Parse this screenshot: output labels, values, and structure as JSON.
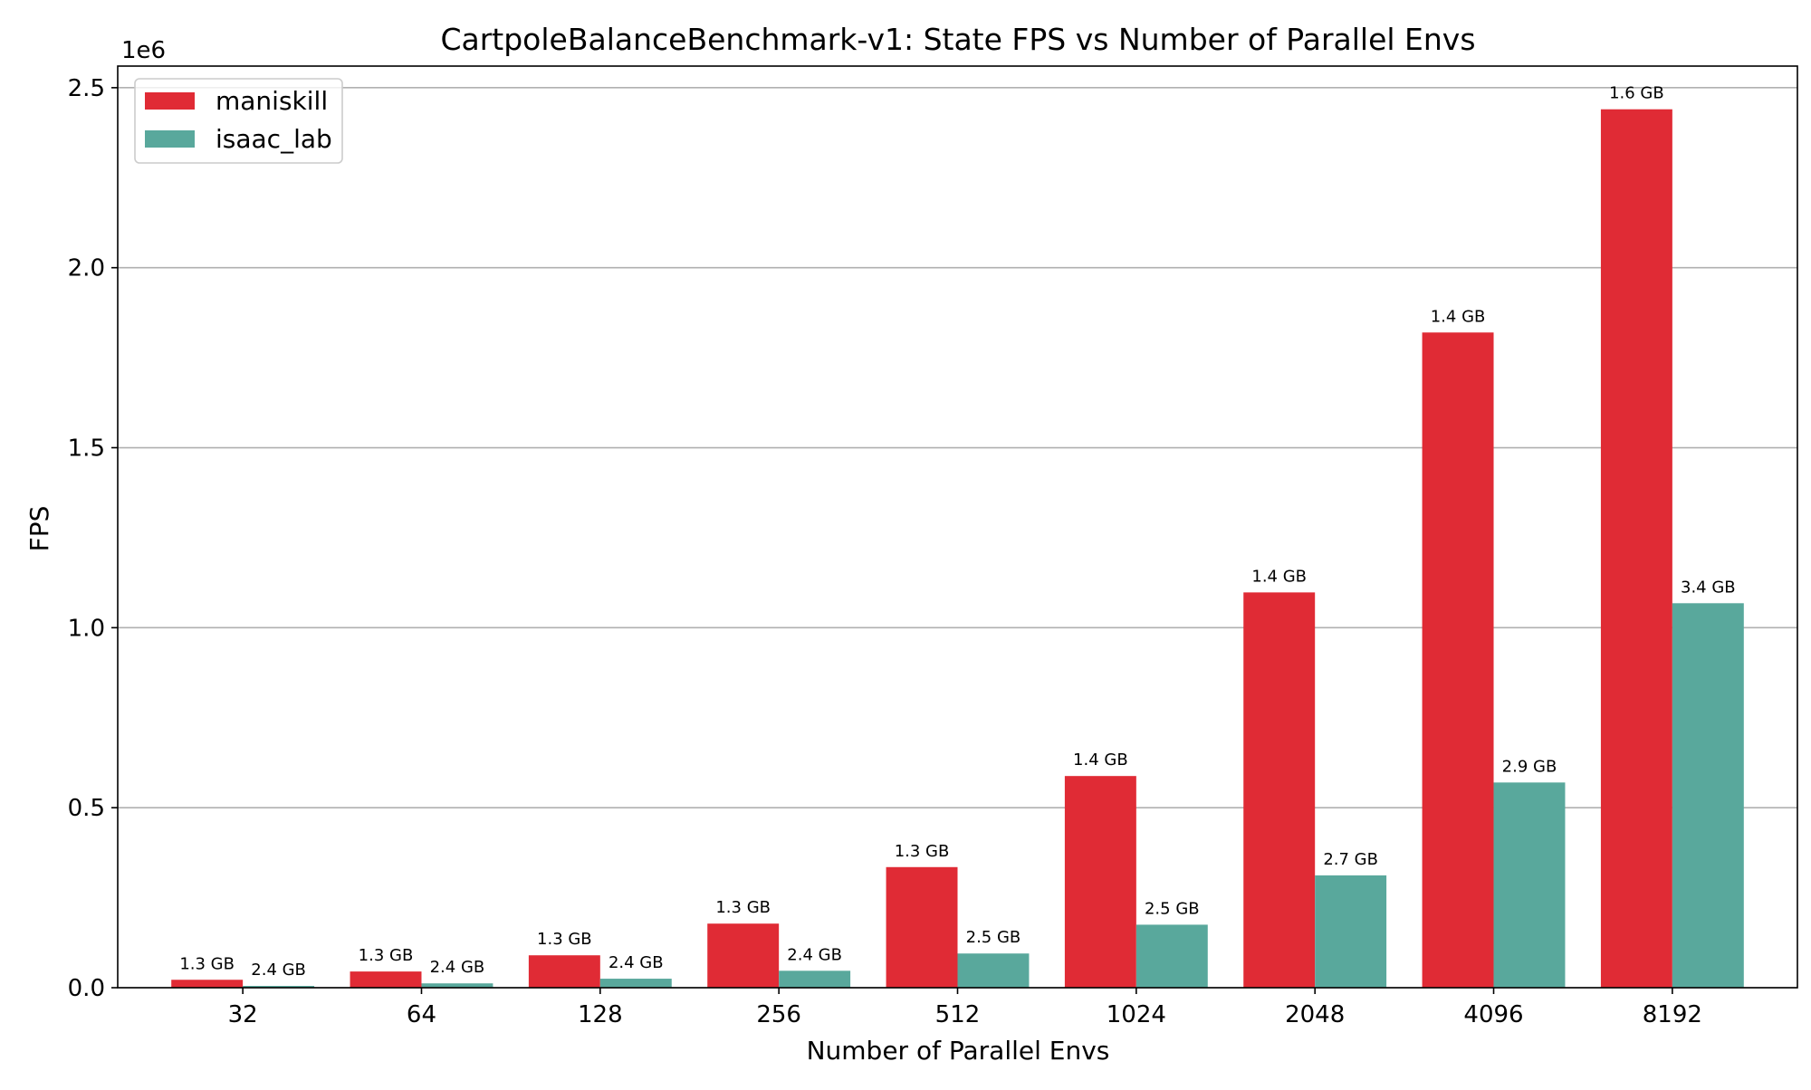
{
  "chart_data": {
    "type": "bar",
    "title": "CartpoleBalanceBenchmark-v1: State FPS vs Number of Parallel Envs",
    "xlabel": "Number of Parallel Envs",
    "ylabel": "FPS",
    "y_offset_label": "1e6",
    "ylim": [
      0,
      2560000
    ],
    "y_ticks": [
      0,
      500000,
      1000000,
      1500000,
      2000000,
      2500000
    ],
    "y_tick_labels": [
      "0.0",
      "0.5",
      "1.0",
      "1.5",
      "2.0",
      "2.5"
    ],
    "grid": "horizontal",
    "legend_position": "top-left",
    "categories": [
      "32",
      "64",
      "128",
      "256",
      "512",
      "1024",
      "2048",
      "4096",
      "8192"
    ],
    "series": [
      {
        "name": "maniskill",
        "color": "#e02b35",
        "values": [
          22000,
          45000,
          90000,
          178000,
          335000,
          588000,
          1098000,
          1820000,
          2440000
        ],
        "labels": [
          "1.3 GB",
          "1.3 GB",
          "1.3 GB",
          "1.3 GB",
          "1.3 GB",
          "1.4 GB",
          "1.4 GB",
          "1.4 GB",
          "1.6 GB"
        ]
      },
      {
        "name": "isaac_lab",
        "color": "#59a89c",
        "values": [
          5000,
          12000,
          25000,
          47000,
          95000,
          175000,
          312000,
          570000,
          1068000
        ],
        "labels": [
          "2.4 GB",
          "2.4 GB",
          "2.4 GB",
          "2.4 GB",
          "2.5 GB",
          "2.5 GB",
          "2.7 GB",
          "2.9 GB",
          "3.4 GB"
        ]
      }
    ]
  }
}
